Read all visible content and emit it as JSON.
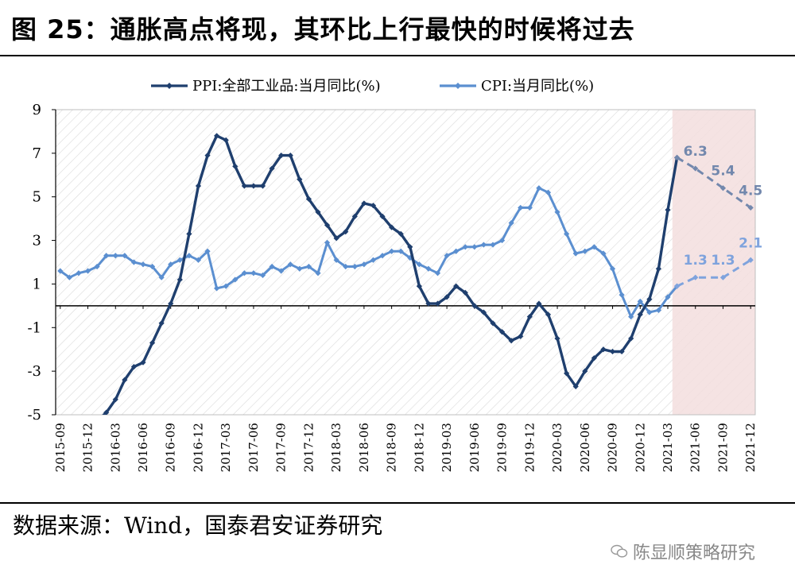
{
  "title": "图 25：通胀高点将现，其环比上行最快的时候将过去",
  "source": "数据来源：Wind，国泰君安证券研究",
  "watermark": "陈显顺策略研究",
  "colors": {
    "ppi": "#1f3f6e",
    "cpi": "#5b8fd0",
    "forecast_ppi": "#7388ad",
    "forecast_cpi": "#7fa3dd",
    "forecast_band": "#f3dede",
    "hatch": "#d9d9d9"
  },
  "chart_data": {
    "type": "line",
    "title": "",
    "xlabel": "",
    "ylabel": "",
    "ylim": [
      -5,
      9
    ],
    "yticks": [
      -5,
      -3,
      -1,
      1,
      3,
      5,
      7,
      9
    ],
    "legend_position": "top",
    "grid": false,
    "background": "diagonal hatch",
    "forecast_region_start": "2021-04",
    "x_tick_labels": [
      "2015-09",
      "2015-12",
      "2016-03",
      "2016-06",
      "2016-09",
      "2016-12",
      "2017-03",
      "2017-06",
      "2017-09",
      "2017-12",
      "2018-03",
      "2018-06",
      "2018-09",
      "2018-12",
      "2019-03",
      "2019-06",
      "2019-09",
      "2019-12",
      "2020-03",
      "2020-06",
      "2020-09",
      "2020-12",
      "2021-03",
      "2021-06",
      "2021-09",
      "2021-12"
    ],
    "series": [
      {
        "name": "PPI:全部工业品:当月同比(%)",
        "start": "2016-01",
        "values": [
          -5.3,
          -4.9,
          -4.3,
          -3.4,
          -2.8,
          -2.6,
          -1.7,
          -0.8,
          0.1,
          1.2,
          3.3,
          5.5,
          6.9,
          7.8,
          7.6,
          6.4,
          5.5,
          5.5,
          5.5,
          6.3,
          6.9,
          6.9,
          5.8,
          4.9,
          4.3,
          3.7,
          3.1,
          3.4,
          4.1,
          4.7,
          4.6,
          4.1,
          3.6,
          3.3,
          2.7,
          0.9,
          0.1,
          0.1,
          0.4,
          0.9,
          0.6,
          0.0,
          -0.3,
          -0.8,
          -1.2,
          -1.6,
          -1.4,
          -0.5,
          0.1,
          -0.4,
          -1.5,
          -3.1,
          -3.7,
          -3.0,
          -2.4,
          -2.0,
          -2.1,
          -2.1,
          -1.5,
          -0.4,
          0.3,
          1.7,
          4.4,
          6.8
        ]
      },
      {
        "name": "CPI:当月同比(%)",
        "start": "2015-09",
        "values": [
          1.6,
          1.3,
          1.5,
          1.6,
          1.8,
          2.3,
          2.3,
          2.3,
          2.0,
          1.9,
          1.8,
          1.3,
          1.9,
          2.1,
          2.3,
          2.1,
          2.5,
          0.8,
          0.9,
          1.2,
          1.5,
          1.5,
          1.4,
          1.8,
          1.6,
          1.9,
          1.7,
          1.8,
          1.5,
          2.9,
          2.1,
          1.8,
          1.8,
          1.9,
          2.1,
          2.3,
          2.5,
          2.5,
          2.2,
          1.9,
          1.7,
          1.5,
          2.3,
          2.5,
          2.7,
          2.7,
          2.8,
          2.8,
          3.0,
          3.8,
          4.5,
          4.5,
          5.4,
          5.2,
          4.3,
          3.3,
          2.4,
          2.5,
          2.7,
          2.4,
          1.7,
          0.5,
          -0.5,
          0.2,
          -0.3,
          -0.2,
          0.4,
          0.9
        ]
      },
      {
        "name": "PPI forecast",
        "points": [
          {
            "x": "2021-04",
            "y": 6.8
          },
          {
            "x": "2021-06",
            "y": 6.3,
            "label": "6.3"
          },
          {
            "x": "2021-09",
            "y": 5.4,
            "label": "5.4"
          },
          {
            "x": "2021-12",
            "y": 4.5,
            "label": "4.5"
          }
        ]
      },
      {
        "name": "CPI forecast",
        "points": [
          {
            "x": "2021-04",
            "y": 0.9
          },
          {
            "x": "2021-06",
            "y": 1.3,
            "label": "1.3"
          },
          {
            "x": "2021-09",
            "y": 1.3,
            "label": "1.3"
          },
          {
            "x": "2021-12",
            "y": 2.1,
            "label": "2.1"
          }
        ]
      }
    ]
  }
}
